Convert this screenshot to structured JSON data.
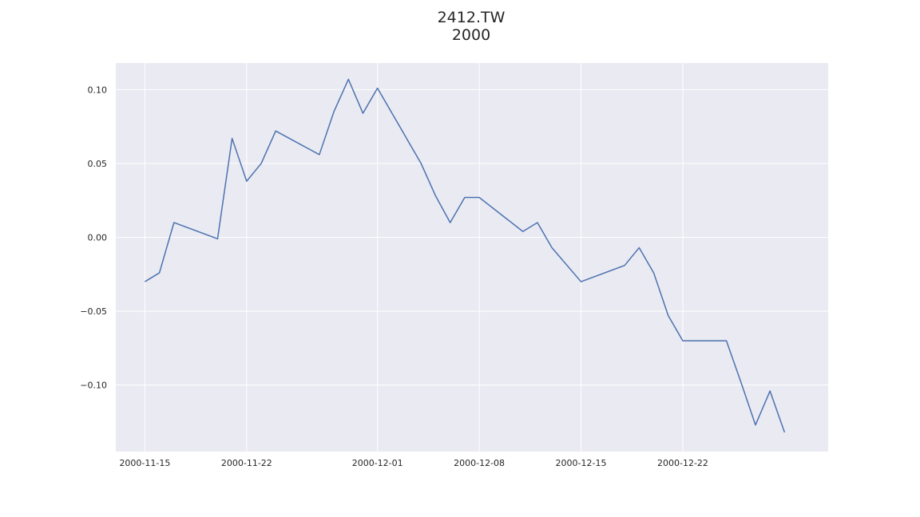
{
  "chart_data": {
    "type": "line",
    "title": "2412.TW",
    "subtitle": "2000",
    "xlabel": "",
    "ylabel": "",
    "x_ticks": [
      "2000-11-15",
      "2000-11-22",
      "2000-12-01",
      "2000-12-08",
      "2000-12-15",
      "2000-12-22"
    ],
    "y_ticks": [
      "0.10",
      "0.05",
      "0.00",
      "−0.05",
      "−0.10"
    ],
    "y_tick_values": [
      0.1,
      0.05,
      0.0,
      -0.05,
      -0.1
    ],
    "xlim": [
      "2000-11-13",
      "2001-01-01"
    ],
    "ylim": [
      -0.145,
      0.118
    ],
    "grid": true,
    "colors": {
      "background": "#eaeaf2",
      "grid": "#ffffff",
      "line": "#4c72b0",
      "text": "#262626"
    },
    "series": [
      {
        "x": [
          "2000-11-15",
          "2000-11-16",
          "2000-11-17",
          "2000-11-20",
          "2000-11-21",
          "2000-11-22",
          "2000-11-23",
          "2000-11-24",
          "2000-11-27",
          "2000-11-28",
          "2000-11-29",
          "2000-11-30",
          "2000-12-01",
          "2000-12-04",
          "2000-12-05",
          "2000-12-06",
          "2000-12-07",
          "2000-12-08",
          "2000-12-11",
          "2000-12-12",
          "2000-12-13",
          "2000-12-15",
          "2000-12-18",
          "2000-12-19",
          "2000-12-20",
          "2000-12-21",
          "2000-12-22",
          "2000-12-25",
          "2000-12-26",
          "2000-12-27",
          "2000-12-28",
          "2000-12-29"
        ],
        "values": [
          -0.03,
          -0.024,
          0.01,
          -0.001,
          0.067,
          0.038,
          0.05,
          0.072,
          0.056,
          0.085,
          0.107,
          0.084,
          0.101,
          0.05,
          0.028,
          0.01,
          0.027,
          0.027,
          0.004,
          0.01,
          -0.007,
          -0.03,
          -0.019,
          -0.007,
          -0.024,
          -0.053,
          -0.07,
          -0.07,
          -0.098,
          -0.127,
          -0.104,
          -0.132
        ]
      }
    ]
  }
}
